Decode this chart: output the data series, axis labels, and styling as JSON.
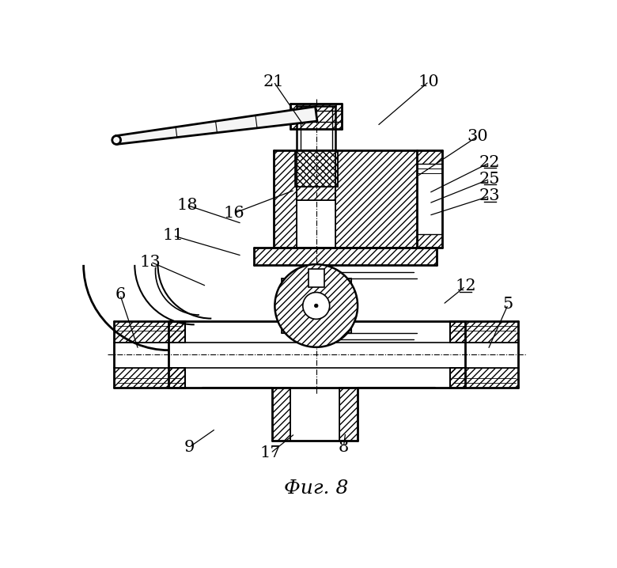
{
  "title": "Фиг. 8",
  "title_fontsize": 18,
  "bg_color": "#ffffff",
  "line_color": "#000000",
  "labels_data": [
    [
      "21",
      370,
      95,
      320,
      22
    ],
    [
      "10",
      490,
      95,
      575,
      22
    ],
    [
      "30",
      555,
      178,
      655,
      112
    ],
    [
      "22",
      575,
      205,
      675,
      155
    ],
    [
      "25",
      575,
      222,
      675,
      182
    ],
    [
      "23",
      575,
      242,
      675,
      210
    ],
    [
      "18",
      268,
      255,
      178,
      225
    ],
    [
      "16",
      355,
      200,
      255,
      238
    ],
    [
      "11",
      268,
      308,
      155,
      275
    ],
    [
      "13",
      210,
      358,
      118,
      318
    ],
    [
      "6",
      98,
      462,
      68,
      372
    ],
    [
      "12",
      598,
      388,
      635,
      358
    ],
    [
      "5",
      672,
      462,
      705,
      388
    ],
    [
      "9",
      225,
      592,
      182,
      622
    ],
    [
      "17",
      355,
      600,
      315,
      632
    ],
    [
      "8",
      438,
      598,
      435,
      622
    ]
  ]
}
